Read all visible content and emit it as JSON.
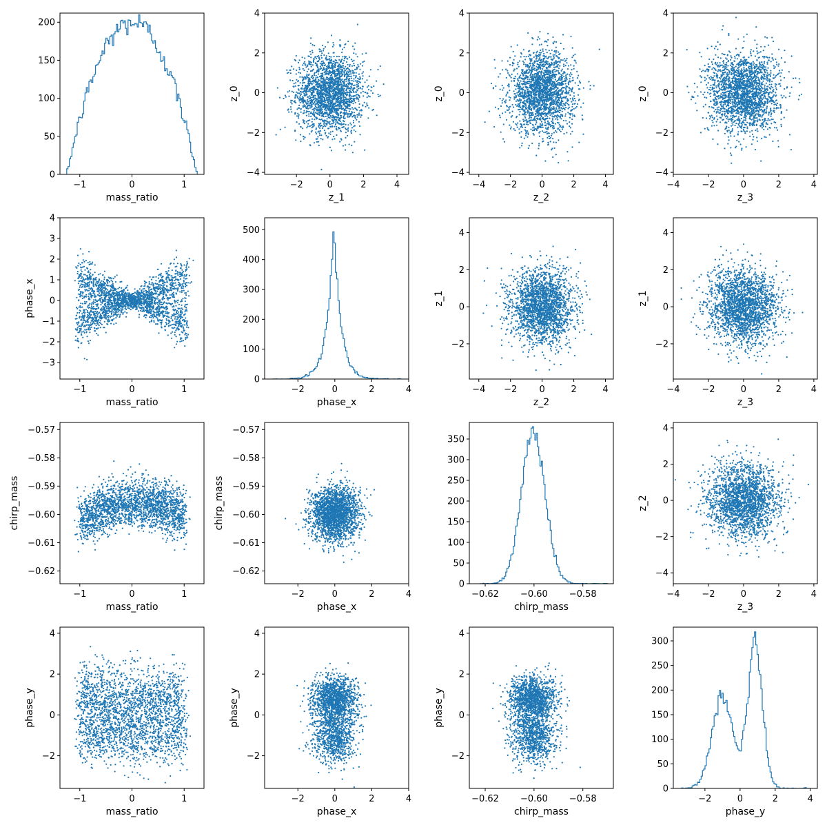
{
  "figure": {
    "background": "#ffffff",
    "series_color": "#1f77b4"
  },
  "chart_data": [
    {
      "id": "p00",
      "type": "histogram-step",
      "xlabel": "mass_ratio",
      "ylabel": "",
      "xlim": [
        -1.38,
        1.38
      ],
      "ylim": [
        0,
        212
      ],
      "xticks": [
        -1,
        0,
        1
      ],
      "xtick_labels": [
        "−1",
        "0",
        "1"
      ],
      "yticks": [
        0,
        50,
        100,
        150,
        200
      ],
      "ytick_labels": [
        "0",
        "50",
        "100",
        "150",
        "200"
      ],
      "histogram": {
        "kind": "arch",
        "center": 0.0,
        "halfwidth": 1.25,
        "peak": 200,
        "n_bins": 100
      }
    },
    {
      "id": "p01",
      "type": "scatter",
      "xlabel": "z_1",
      "ylabel": "z_0",
      "xlim": [
        -3.9,
        4.7
      ],
      "ylim": [
        -4.1,
        4.0
      ],
      "xticks": [
        -2,
        0,
        2,
        4
      ],
      "xtick_labels": [
        "−2",
        "0",
        "2",
        "4"
      ],
      "yticks": [
        -4,
        -2,
        0,
        2,
        4
      ],
      "ytick_labels": [
        "−4",
        "−2",
        "0",
        "2",
        "4"
      ],
      "scatter": {
        "kind": "gaussian",
        "cx": 0.0,
        "cy": 0.0,
        "sx": 1.0,
        "sy": 1.0,
        "n": 2200
      }
    },
    {
      "id": "p02",
      "type": "scatter",
      "xlabel": "z_2",
      "ylabel": "z_0",
      "xlim": [
        -4.6,
        4.5
      ],
      "ylim": [
        -4.1,
        4.0
      ],
      "xticks": [
        -4,
        -2,
        0,
        2,
        4
      ],
      "xtick_labels": [
        "−4",
        "−2",
        "0",
        "2",
        "4"
      ],
      "yticks": [
        -4,
        -2,
        0,
        2,
        4
      ],
      "ytick_labels": [
        "−4",
        "−2",
        "0",
        "2",
        "4"
      ],
      "scatter": {
        "kind": "gaussian",
        "cx": 0.0,
        "cy": 0.0,
        "sx": 1.0,
        "sy": 1.0,
        "n": 2200
      }
    },
    {
      "id": "p03",
      "type": "scatter",
      "xlabel": "z_3",
      "ylabel": "z_0",
      "xlim": [
        -4.0,
        4.2
      ],
      "ylim": [
        -4.1,
        4.0
      ],
      "xticks": [
        -4,
        -2,
        0,
        2,
        4
      ],
      "xtick_labels": [
        "−4",
        "−2",
        "0",
        "2",
        "4"
      ],
      "yticks": [
        -4,
        -2,
        0,
        2,
        4
      ],
      "ytick_labels": [
        "−4",
        "−2",
        "0",
        "2",
        "4"
      ],
      "scatter": {
        "kind": "gaussian",
        "cx": 0.0,
        "cy": 0.0,
        "sx": 1.0,
        "sy": 1.0,
        "n": 2200
      }
    },
    {
      "id": "p10",
      "type": "scatter",
      "xlabel": "mass_ratio",
      "ylabel": "phase_x",
      "xlim": [
        -1.38,
        1.38
      ],
      "ylim": [
        -3.8,
        4.0
      ],
      "xticks": [
        -1,
        0,
        1
      ],
      "xtick_labels": [
        "−1",
        "0",
        "1"
      ],
      "yticks": [
        -3,
        -2,
        -1,
        0,
        1,
        2,
        3,
        4
      ],
      "ytick_labels": [
        "−3",
        "−2",
        "−1",
        "0",
        "1",
        "2",
        "3",
        "4"
      ],
      "scatter": {
        "kind": "bowtie",
        "n": 2400
      }
    },
    {
      "id": "p11",
      "type": "histogram-step",
      "xlabel": "phase_x",
      "ylabel": "",
      "xlim": [
        -3.8,
        4.0
      ],
      "ylim": [
        0,
        540
      ],
      "xticks": [
        -2,
        0,
        2,
        4
      ],
      "xtick_labels": [
        "−2",
        "0",
        "2",
        "4"
      ],
      "yticks": [
        0,
        100,
        200,
        300,
        400,
        500
      ],
      "ytick_labels": [
        "0",
        "100",
        "200",
        "300",
        "400",
        "500"
      ],
      "histogram": {
        "kind": "laplace",
        "center": -0.05,
        "scale": 0.38,
        "peak": 515,
        "range": [
          -3.4,
          3.6
        ],
        "n_bins": 100
      }
    },
    {
      "id": "p12",
      "type": "scatter",
      "xlabel": "z_2",
      "ylabel": "z_1",
      "xlim": [
        -4.6,
        4.5
      ],
      "ylim": [
        -3.9,
        4.8
      ],
      "xticks": [
        -4,
        -2,
        0,
        2,
        4
      ],
      "xtick_labels": [
        "−4",
        "−2",
        "0",
        "2",
        "4"
      ],
      "yticks": [
        -2,
        0,
        2,
        4
      ],
      "ytick_labels": [
        "−2",
        "0",
        "2",
        "4"
      ],
      "scatter": {
        "kind": "gaussian",
        "cx": 0.0,
        "cy": 0.0,
        "sx": 1.0,
        "sy": 1.0,
        "n": 2200
      }
    },
    {
      "id": "p13",
      "type": "scatter",
      "xlabel": "z_3",
      "ylabel": "z_1",
      "xlim": [
        -4.0,
        4.2
      ],
      "ylim": [
        -3.9,
        4.8
      ],
      "xticks": [
        -4,
        -2,
        0,
        2,
        4
      ],
      "xtick_labels": [
        "−4",
        "−2",
        "0",
        "2",
        "4"
      ],
      "yticks": [
        -2,
        0,
        2,
        4
      ],
      "ytick_labels": [
        "−2",
        "0",
        "2",
        "4"
      ],
      "scatter": {
        "kind": "gaussian",
        "cx": 0.0,
        "cy": 0.0,
        "sx": 1.0,
        "sy": 1.0,
        "n": 2200
      }
    },
    {
      "id": "p20",
      "type": "scatter",
      "xlabel": "mass_ratio",
      "ylabel": "chirp_mass",
      "xlim": [
        -1.38,
        1.38
      ],
      "ylim": [
        -0.6245,
        -0.5675
      ],
      "xticks": [
        -1,
        0,
        1
      ],
      "xtick_labels": [
        "−1",
        "0",
        "1"
      ],
      "yticks": [
        -0.62,
        -0.61,
        -0.6,
        -0.59,
        -0.58,
        -0.57
      ],
      "ytick_labels": [
        "−0.62",
        "−0.61",
        "−0.60",
        "−0.59",
        "−0.58",
        "−0.57"
      ],
      "scatter": {
        "kind": "arc-band",
        "n": 2200
      }
    },
    {
      "id": "p21",
      "type": "scatter",
      "xlabel": "phase_x",
      "ylabel": "chirp_mass",
      "xlim": [
        -3.8,
        4.0
      ],
      "ylim": [
        -0.6245,
        -0.5675
      ],
      "xticks": [
        -2,
        0,
        2,
        4
      ],
      "xtick_labels": [
        "−2",
        "0",
        "2",
        "4"
      ],
      "yticks": [
        -0.62,
        -0.61,
        -0.6,
        -0.59,
        -0.58,
        -0.57
      ],
      "ytick_labels": [
        "−0.62",
        "−0.61",
        "−0.60",
        "−0.59",
        "−0.58",
        "−0.57"
      ],
      "scatter": {
        "kind": "gaussian",
        "cx": 0.0,
        "cy": -0.6,
        "sx": 0.65,
        "sy": 0.0048,
        "n": 2200
      }
    },
    {
      "id": "p22",
      "type": "histogram-step",
      "xlabel": "chirp_mass",
      "ylabel": "",
      "xlim": [
        -0.6265,
        -0.5675
      ],
      "ylim": [
        0,
        390
      ],
      "xticks": [
        -0.62,
        -0.6,
        -0.58
      ],
      "xtick_labels": [
        "−0.62",
        "−0.60",
        "−0.58"
      ],
      "yticks": [
        0,
        50,
        100,
        150,
        200,
        250,
        300,
        350
      ],
      "ytick_labels": [
        "0",
        "50",
        "100",
        "150",
        "200",
        "250",
        "300",
        "350"
      ],
      "histogram": {
        "kind": "gauss",
        "center": -0.6003,
        "sigma": 0.0048,
        "peak": 370,
        "range": [
          -0.622,
          -0.57
        ],
        "n_bins": 100
      }
    },
    {
      "id": "p23",
      "type": "scatter",
      "xlabel": "z_3",
      "ylabel": "z_2",
      "xlim": [
        -4.0,
        4.2
      ],
      "ylim": [
        -4.6,
        4.3
      ],
      "xticks": [
        -4,
        -2,
        0,
        2,
        4
      ],
      "xtick_labels": [
        "−4",
        "−2",
        "0",
        "2",
        "4"
      ],
      "yticks": [
        -4,
        -2,
        0,
        2,
        4
      ],
      "ytick_labels": [
        "−4",
        "−2",
        "0",
        "2",
        "4"
      ],
      "scatter": {
        "kind": "gaussian",
        "cx": 0.0,
        "cy": 0.0,
        "sx": 1.0,
        "sy": 1.0,
        "n": 2200
      }
    },
    {
      "id": "p30",
      "type": "scatter",
      "xlabel": "mass_ratio",
      "ylabel": "phase_y",
      "xlim": [
        -1.38,
        1.38
      ],
      "ylim": [
        -3.6,
        4.3
      ],
      "xticks": [
        -1,
        0,
        1
      ],
      "xtick_labels": [
        "−1",
        "0",
        "1"
      ],
      "yticks": [
        -2,
        0,
        2,
        4
      ],
      "ytick_labels": [
        "−2",
        "0",
        "2",
        "4"
      ],
      "scatter": {
        "kind": "split-bands",
        "n": 2400
      }
    },
    {
      "id": "p31",
      "type": "scatter",
      "xlabel": "phase_x",
      "ylabel": "phase_y",
      "xlim": [
        -3.8,
        4.0
      ],
      "ylim": [
        -3.6,
        4.3
      ],
      "xticks": [
        -2,
        0,
        2,
        4
      ],
      "xtick_labels": [
        "−2",
        "0",
        "2",
        "4"
      ],
      "yticks": [
        -2,
        0,
        2,
        4
      ],
      "ytick_labels": [
        "−2",
        "0",
        "2",
        "4"
      ],
      "scatter": {
        "kind": "bimodal-y",
        "sx": 0.6,
        "n": 2200
      }
    },
    {
      "id": "p32",
      "type": "scatter",
      "xlabel": "chirp_mass",
      "ylabel": "phase_y",
      "xlim": [
        -0.6265,
        -0.5675
      ],
      "ylim": [
        -3.6,
        4.3
      ],
      "xticks": [
        -0.62,
        -0.6,
        -0.58
      ],
      "xtick_labels": [
        "−0.62",
        "−0.60",
        "−0.58"
      ],
      "yticks": [
        -2,
        0,
        2,
        4
      ],
      "ytick_labels": [
        "−2",
        "0",
        "2",
        "4"
      ],
      "scatter": {
        "kind": "bimodal-y",
        "cx": -0.6003,
        "sx": 0.0048,
        "n": 2200
      }
    },
    {
      "id": "p33",
      "type": "histogram-step",
      "xlabel": "phase_y",
      "ylabel": "",
      "xlim": [
        -3.8,
        4.4
      ],
      "ylim": [
        0,
        328
      ],
      "xticks": [
        -2,
        0,
        2,
        4
      ],
      "xtick_labels": [
        "−2",
        "0",
        "2",
        "4"
      ],
      "yticks": [
        0,
        50,
        100,
        150,
        200,
        250,
        300
      ],
      "ytick_labels": [
        "0",
        "50",
        "100",
        "150",
        "200",
        "250",
        "300"
      ],
      "histogram": {
        "kind": "bimodal",
        "modes": [
          {
            "center": -1.0,
            "sigma": 0.6,
            "peak": 185
          },
          {
            "center": 0.85,
            "sigma": 0.42,
            "peak": 300
          }
        ],
        "range": [
          -3.4,
          4.0
        ],
        "n_bins": 100
      }
    }
  ]
}
